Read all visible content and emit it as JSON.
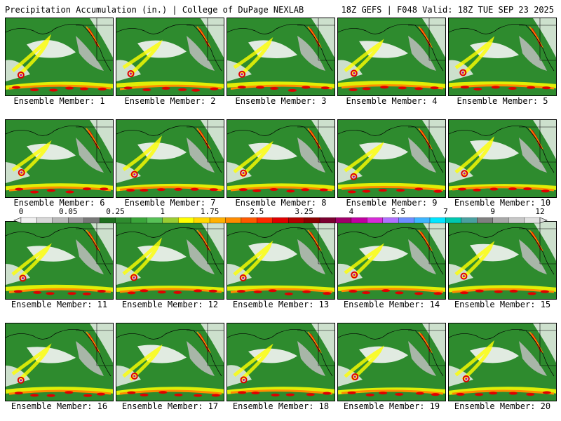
{
  "header": {
    "title": "Precipitation Accumulation (in.) | College of DuPage NEXLAB",
    "run_info": "18Z GEFS | F048 Valid: 18Z TUE SEP 23 2025"
  },
  "members": [
    {
      "label": "Ensemble Member: 1"
    },
    {
      "label": "Ensemble Member: 2"
    },
    {
      "label": "Ensemble Member: 3"
    },
    {
      "label": "Ensemble Member: 4"
    },
    {
      "label": "Ensemble Member: 5"
    },
    {
      "label": "Ensemble Member: 6"
    },
    {
      "label": "Ensemble Member: 7"
    },
    {
      "label": "Ensemble Member: 8"
    },
    {
      "label": "Ensemble Member: 9"
    },
    {
      "label": "Ensemble Member: 10"
    },
    {
      "label": "Ensemble Member: 11"
    },
    {
      "label": "Ensemble Member: 12"
    },
    {
      "label": "Ensemble Member: 13"
    },
    {
      "label": "Ensemble Member: 14"
    },
    {
      "label": "Ensemble Member: 15"
    },
    {
      "label": "Ensemble Member: 16"
    },
    {
      "label": "Ensemble Member: 17"
    },
    {
      "label": "Ensemble Member: 18"
    },
    {
      "label": "Ensemble Member: 19"
    },
    {
      "label": "Ensemble Member: 20"
    }
  ],
  "colorbar": {
    "labels": [
      "0",
      "0.05",
      "0.25",
      "1",
      "1.75",
      "2.5",
      "3.25",
      "4",
      "5.5",
      "7",
      "9",
      "12"
    ],
    "colors": [
      "#f0f0f0",
      "#d8d8d8",
      "#b8b8b8",
      "#989898",
      "#787878",
      "#1e6e1e",
      "#2e8b2e",
      "#3aa53a",
      "#57c157",
      "#9acd32",
      "#ffff00",
      "#ffd700",
      "#ffb000",
      "#ff8c00",
      "#ff5a00",
      "#ff2a00",
      "#e00000",
      "#b40000",
      "#8b0000",
      "#7a0030",
      "#a0006a",
      "#c000a0",
      "#d82cd8",
      "#b070ff",
      "#6d8dff",
      "#3db5ff",
      "#00e5ff",
      "#00c8b0",
      "#4aa0a0",
      "#808080",
      "#a8a8a8",
      "#c8c8c8",
      "#e0e0e0"
    ]
  },
  "map_colors": {
    "green": "#2e8b2e",
    "white": "#f5f5f5",
    "grey": "#bdbdbd",
    "yellow": "#ffff00",
    "orange": "#ff8c00",
    "red": "#e00000",
    "magenta": "#c000a0"
  }
}
